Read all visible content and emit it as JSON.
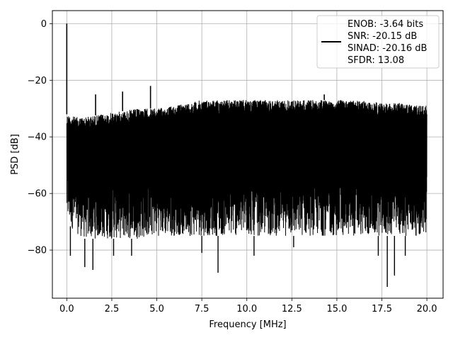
{
  "chart_data": {
    "type": "line",
    "xlabel": "Frequency [MHz]",
    "ylabel": "PSD [dB]",
    "xlim": [
      -0.8,
      20.9
    ],
    "ylim": [
      -97,
      4.6
    ],
    "xticks": [
      0.0,
      2.5,
      5.0,
      7.5,
      10.0,
      12.5,
      15.0,
      17.5,
      20.0
    ],
    "xtick_labels": [
      "0.0",
      "2.5",
      "5.0",
      "7.5",
      "10.0",
      "12.5",
      "15.0",
      "17.5",
      "20.0"
    ],
    "yticks": [
      0,
      -20,
      -40,
      -60,
      -80
    ],
    "ytick_labels": [
      "0",
      "−20",
      "−40",
      "−60",
      "−80"
    ],
    "grid": true,
    "legend_position": "top-right",
    "series": [
      {
        "color": "#000000",
        "envelope_x": [
          0.0,
          0.5,
          1.0,
          2.0,
          3.0,
          4.0,
          5.0,
          6.0,
          7.5,
          9.0,
          10.0,
          11.0,
          12.5,
          14.0,
          15.0,
          16.0,
          17.5,
          18.5,
          19.5,
          20.0
        ],
        "envelope_upper": [
          -32,
          -33,
          -33,
          -32,
          -31,
          -30,
          -30,
          -29,
          -27,
          -27,
          -27,
          -27,
          -27,
          -27,
          -27,
          -27,
          -28,
          -28,
          -29,
          -29
        ],
        "envelope_lower": [
          -70,
          -74,
          -76,
          -76,
          -76,
          -76,
          -75,
          -75,
          -75,
          -75,
          -75,
          -75,
          -75,
          -75,
          -75,
          -75,
          -75,
          -75,
          -75,
          -75
        ],
        "spikes": [
          {
            "x": 0.0,
            "y": 0.0
          },
          {
            "x": 1.6,
            "y": -25
          },
          {
            "x": 3.1,
            "y": -24
          },
          {
            "x": 4.65,
            "y": -22
          },
          {
            "x": 14.3,
            "y": -25
          }
        ],
        "dips": [
          {
            "x": 0.2,
            "y": -82
          },
          {
            "x": 1.0,
            "y": -86
          },
          {
            "x": 1.45,
            "y": -87
          },
          {
            "x": 2.6,
            "y": -82
          },
          {
            "x": 3.6,
            "y": -82
          },
          {
            "x": 7.5,
            "y": -81
          },
          {
            "x": 8.4,
            "y": -88
          },
          {
            "x": 10.4,
            "y": -82
          },
          {
            "x": 12.6,
            "y": -79
          },
          {
            "x": 17.3,
            "y": -82
          },
          {
            "x": 17.8,
            "y": -93
          },
          {
            "x": 18.2,
            "y": -89
          },
          {
            "x": 18.8,
            "y": -82
          }
        ]
      }
    ],
    "legend": {
      "lines": [
        "ENOB: -3.64 bits",
        "SNR: -20.15 dB",
        "SINAD: -20.16 dB",
        "SFDR: 13.08"
      ]
    }
  }
}
